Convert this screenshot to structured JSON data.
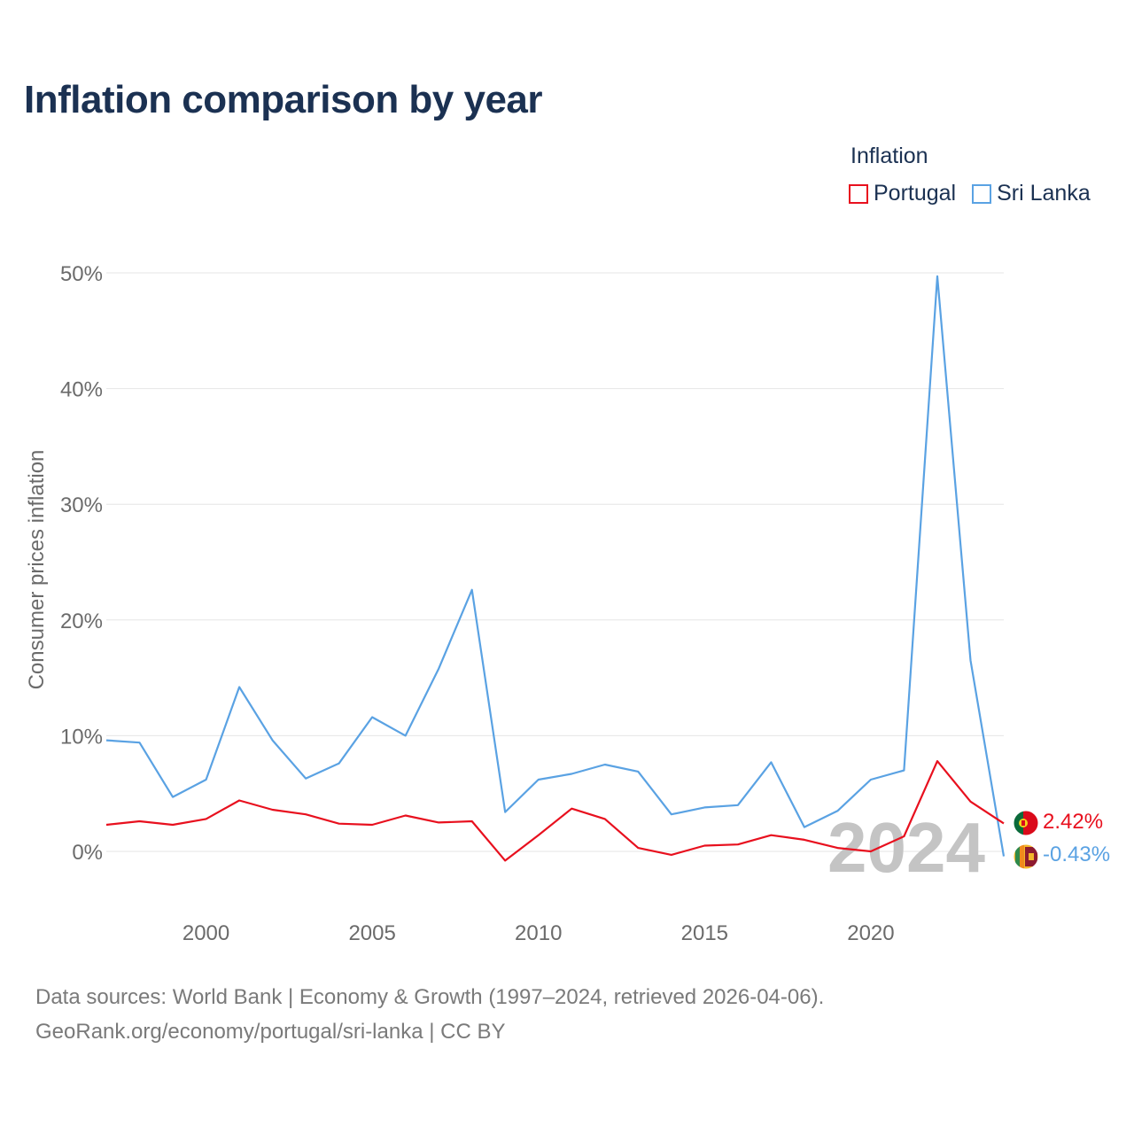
{
  "title": "Inflation comparison by year",
  "legend": {
    "title": "Inflation",
    "items": [
      {
        "name": "Portugal",
        "color": "#e8101e"
      },
      {
        "name": "Sri Lanka",
        "color": "#5aa2e3"
      }
    ]
  },
  "source": {
    "line1": "Data sources: World Bank | Economy & Growth (1997–2024, retrieved 2026-04-06).",
    "line2": "GeoRank.org/economy/portugal/sri-lanka | CC BY"
  },
  "chart_data": {
    "type": "line",
    "title": "Inflation comparison by year",
    "xlabel": "",
    "ylabel": "Consumer prices inflation",
    "xlim": [
      1997,
      2024
    ],
    "ylim": [
      -2.5,
      52
    ],
    "x_ticks": [
      2000,
      2005,
      2010,
      2015,
      2020
    ],
    "y_ticks": [
      0,
      10,
      20,
      30,
      40,
      50
    ],
    "y_tick_labels": [
      "0%",
      "10%",
      "20%",
      "30%",
      "40%",
      "50%"
    ],
    "grid": true,
    "watermark_year": "2024",
    "x": [
      1997,
      1998,
      1999,
      2000,
      2001,
      2002,
      2003,
      2004,
      2005,
      2006,
      2007,
      2008,
      2009,
      2010,
      2011,
      2012,
      2013,
      2014,
      2015,
      2016,
      2017,
      2018,
      2019,
      2020,
      2021,
      2022,
      2023,
      2024
    ],
    "series": [
      {
        "name": "Sri Lanka",
        "color": "#5aa2e3",
        "end_label": "-0.43%",
        "flag": "sri-lanka-flag-icon",
        "values": [
          9.6,
          9.4,
          4.7,
          6.2,
          14.2,
          9.6,
          6.3,
          7.6,
          11.6,
          10.0,
          15.8,
          22.6,
          3.4,
          6.2,
          6.7,
          7.5,
          6.9,
          3.2,
          3.8,
          4.0,
          7.7,
          2.1,
          3.5,
          6.2,
          7.0,
          49.7,
          16.5,
          -0.43
        ]
      },
      {
        "name": "Portugal",
        "color": "#e8101e",
        "end_label": "2.42%",
        "flag": "portugal-flag-icon",
        "values": [
          2.3,
          2.6,
          2.3,
          2.8,
          4.4,
          3.6,
          3.2,
          2.4,
          2.3,
          3.1,
          2.5,
          2.6,
          -0.8,
          1.4,
          3.7,
          2.8,
          0.3,
          -0.3,
          0.5,
          0.6,
          1.4,
          1.0,
          0.3,
          0.0,
          1.3,
          7.8,
          4.3,
          2.42
        ]
      }
    ]
  }
}
